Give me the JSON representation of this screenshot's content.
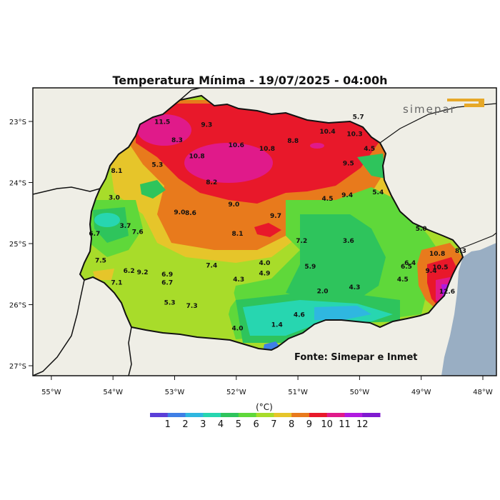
{
  "title": "Temperatura Mínima - 19/07/2025 - 04:00h",
  "logo": {
    "text": "simepar"
  },
  "source": "Fonte: Simepar e Inmet",
  "lat_ticks": [
    "23°S",
    "24°S",
    "25°S",
    "26°S",
    "27°S"
  ],
  "lon_ticks": [
    "55°W",
    "54°W",
    "53°W",
    "52°W",
    "51°W",
    "50°W",
    "49°W",
    "48°W"
  ],
  "legend": {
    "unit": "(°C)",
    "values": [
      "1",
      "2",
      "3",
      "4",
      "5",
      "6",
      "7",
      "8",
      "9",
      "10",
      "11",
      "12"
    ],
    "colors": [
      "#5a3fd8",
      "#3f7fe6",
      "#2fb7e0",
      "#27d6b0",
      "#2ec45c",
      "#5fd83a",
      "#a8dc2a",
      "#e6c52a",
      "#e87a1c",
      "#e8182a",
      "#e01a8a",
      "#b01ae0",
      "#7f1ad0"
    ]
  },
  "stations": [
    {
      "v": "11.5",
      "lon": -53.2,
      "lat": -23.04
    },
    {
      "v": "9.3",
      "lon": -52.48,
      "lat": -23.09
    },
    {
      "v": "8.3",
      "lon": -52.96,
      "lat": -23.34
    },
    {
      "v": "10.6",
      "lon": -52.0,
      "lat": -23.42
    },
    {
      "v": "10.8",
      "lon": -51.5,
      "lat": -23.48
    },
    {
      "v": "8.8",
      "lon": -51.08,
      "lat": -23.35
    },
    {
      "v": "10.4",
      "lon": -50.52,
      "lat": -23.2
    },
    {
      "v": "10.3",
      "lon": -50.08,
      "lat": -23.24
    },
    {
      "v": "5.7",
      "lon": -50.02,
      "lat": -22.96
    },
    {
      "v": "4.5",
      "lon": -49.84,
      "lat": -23.48
    },
    {
      "v": "10.8",
      "lon": -52.64,
      "lat": -23.6
    },
    {
      "v": "5.3",
      "lon": -53.28,
      "lat": -23.74
    },
    {
      "v": "9.5",
      "lon": -50.18,
      "lat": -23.72
    },
    {
      "v": "8.1",
      "lon": -53.94,
      "lat": -23.84
    },
    {
      "v": "8.2",
      "lon": -52.4,
      "lat": -24.03
    },
    {
      "v": "9.4",
      "lon": -50.2,
      "lat": -24.24
    },
    {
      "v": "5.4",
      "lon": -49.7,
      "lat": -24.19
    },
    {
      "v": "3.0",
      "lon": -53.98,
      "lat": -24.28
    },
    {
      "v": "4.5",
      "lon": -50.52,
      "lat": -24.3
    },
    {
      "v": "9.0",
      "lon": -52.04,
      "lat": -24.39
    },
    {
      "v": "9.0",
      "lon": -52.92,
      "lat": -24.52
    },
    {
      "v": "8.6",
      "lon": -52.74,
      "lat": -24.53
    },
    {
      "v": "9.7",
      "lon": -51.36,
      "lat": -24.58
    },
    {
      "v": "3.7",
      "lon": -53.8,
      "lat": -24.74
    },
    {
      "v": "7.6",
      "lon": -53.6,
      "lat": -24.84
    },
    {
      "v": "6.7",
      "lon": -54.3,
      "lat": -24.87
    },
    {
      "v": "5.0",
      "lon": -49.0,
      "lat": -24.79
    },
    {
      "v": "8.1",
      "lon": -51.98,
      "lat": -24.87
    },
    {
      "v": "3.6",
      "lon": -50.18,
      "lat": -24.99
    },
    {
      "v": "7.2",
      "lon": -50.94,
      "lat": -24.99
    },
    {
      "v": "10.8",
      "lon": -48.74,
      "lat": -25.2
    },
    {
      "v": "8.3",
      "lon": -48.36,
      "lat": -25.15
    },
    {
      "v": "7.5",
      "lon": -54.2,
      "lat": -25.31
    },
    {
      "v": "4.0",
      "lon": -51.54,
      "lat": -25.35
    },
    {
      "v": "7.4",
      "lon": -52.4,
      "lat": -25.39
    },
    {
      "v": "5.9",
      "lon": -50.8,
      "lat": -25.41
    },
    {
      "v": "6.4",
      "lon": -49.18,
      "lat": -25.35
    },
    {
      "v": "6.5",
      "lon": -49.24,
      "lat": -25.41
    },
    {
      "v": "10.5",
      "lon": -48.69,
      "lat": -25.42
    },
    {
      "v": "9.4",
      "lon": -48.84,
      "lat": -25.48
    },
    {
      "v": "6.2",
      "lon": -53.74,
      "lat": -25.48
    },
    {
      "v": "9.2",
      "lon": -53.52,
      "lat": -25.5
    },
    {
      "v": "6.9",
      "lon": -53.12,
      "lat": -25.54
    },
    {
      "v": "4.9",
      "lon": -51.54,
      "lat": -25.52
    },
    {
      "v": "7.1",
      "lon": -53.94,
      "lat": -25.67
    },
    {
      "v": "6.7",
      "lon": -53.12,
      "lat": -25.67
    },
    {
      "v": "4.3",
      "lon": -51.96,
      "lat": -25.62
    },
    {
      "v": "4.5",
      "lon": -49.3,
      "lat": -25.62
    },
    {
      "v": "4.3",
      "lon": -50.08,
      "lat": -25.75
    },
    {
      "v": "2.0",
      "lon": -50.6,
      "lat": -25.81
    },
    {
      "v": "12.6",
      "lon": -48.58,
      "lat": -25.82
    },
    {
      "v": "5.3",
      "lon": -53.08,
      "lat": -26.0
    },
    {
      "v": "7.3",
      "lon": -52.72,
      "lat": -26.05
    },
    {
      "v": "4.6",
      "lon": -50.98,
      "lat": -26.2
    },
    {
      "v": "1.4",
      "lon": -51.34,
      "lat": -26.36
    },
    {
      "v": "4.0",
      "lon": -51.98,
      "lat": -26.42
    }
  ]
}
